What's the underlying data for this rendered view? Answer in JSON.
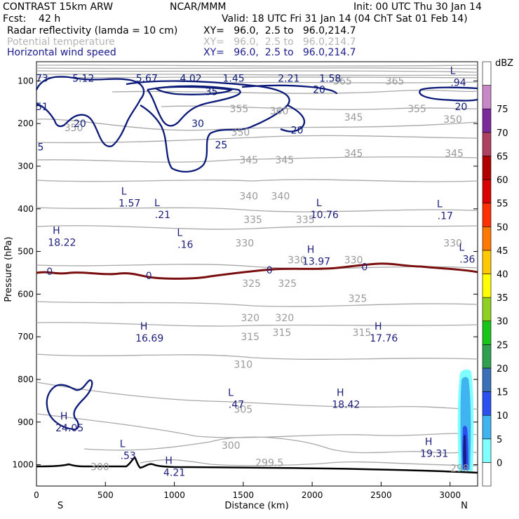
{
  "header": {
    "line1_left": "CONTRAST 15km ARW",
    "line1_mid": "NCAR/MMM",
    "line1_right": "Init: 00 UTC Thu 30 Jan 14",
    "line2_left": "Fcst:    42 h",
    "line2_right": "Valid: 18 UTC Fri 31 Jan 14 (04 ChT Sat 01 Feb 14)",
    "fields": [
      {
        "name": "Radar reflectivity (lamda = 10 cm)",
        "xy": "XY=   96.0,  2.5 to   96.0,214.7",
        "color": "#000000"
      },
      {
        "name": "Potential temperature",
        "xy": "XY=   96.0,  2.5 to   96.0,214.7",
        "color": "#b4b4b4"
      },
      {
        "name": "Horizontal wind speed",
        "xy": "XY=   96.0,  2.5 to   96.0,214.7",
        "color": "#1a1a8c"
      }
    ]
  },
  "chart_data": {
    "type": "cross-section contour",
    "xlabel": "Distance (km)",
    "ylabel": "Pressure (hPa)",
    "xlim": [
      0,
      3200
    ],
    "ylim": [
      1050,
      55
    ],
    "x_ticks": [
      "0",
      "500",
      "1000",
      "1500",
      "2000",
      "2500",
      "3000"
    ],
    "y_ticks": [
      "100",
      "200",
      "300",
      "400",
      "500",
      "600",
      "700",
      "800",
      "900",
      "1000"
    ],
    "endpoint_labels": {
      "left": "S",
      "right": "N"
    },
    "potential_temperature_labels": [
      {
        "text": "365",
        "x": 2220,
        "p": 100
      },
      {
        "text": "365",
        "x": 2600,
        "p": 100
      },
      {
        "text": "355",
        "x": 1470,
        "p": 165
      },
      {
        "text": "355",
        "x": 2760,
        "p": 165
      },
      {
        "text": "360",
        "x": 1760,
        "p": 170
      },
      {
        "text": "350",
        "x": 1480,
        "p": 220
      },
      {
        "text": "345",
        "x": 2300,
        "p": 185
      },
      {
        "text": "350",
        "x": 3020,
        "p": 190
      },
      {
        "text": "350",
        "x": 270,
        "p": 210
      },
      {
        "text": "345",
        "x": 1540,
        "p": 285
      },
      {
        "text": "345",
        "x": 1800,
        "p": 285
      },
      {
        "text": "345",
        "x": 2300,
        "p": 270
      },
      {
        "text": "345",
        "x": 3030,
        "p": 270
      },
      {
        "text": "340",
        "x": 1540,
        "p": 370
      },
      {
        "text": "340",
        "x": 1770,
        "p": 370
      },
      {
        "text": "335",
        "x": 1570,
        "p": 425
      },
      {
        "text": "335",
        "x": 1950,
        "p": 425
      },
      {
        "text": "330",
        "x": 1510,
        "p": 480
      },
      {
        "text": "330",
        "x": 1890,
        "p": 520
      },
      {
        "text": "330",
        "x": 2300,
        "p": 520
      },
      {
        "text": "330",
        "x": 3020,
        "p": 480
      },
      {
        "text": "325",
        "x": 1560,
        "p": 575
      },
      {
        "text": "325",
        "x": 1820,
        "p": 575
      },
      {
        "text": "325",
        "x": 2330,
        "p": 610
      },
      {
        "text": "320",
        "x": 1550,
        "p": 655
      },
      {
        "text": "320",
        "x": 1800,
        "p": 655
      },
      {
        "text": "315",
        "x": 1550,
        "p": 700
      },
      {
        "text": "315",
        "x": 1780,
        "p": 690
      },
      {
        "text": "315",
        "x": 2360,
        "p": 690
      },
      {
        "text": "310",
        "x": 1500,
        "p": 765
      },
      {
        "text": "305",
        "x": 1500,
        "p": 870
      },
      {
        "text": "300",
        "x": 1410,
        "p": 955
      },
      {
        "text": "300",
        "x": 460,
        "p": 1005
      },
      {
        "text": "299.5",
        "x": 1690,
        "p": 995
      },
      {
        "text": "298",
        "x": 3070,
        "p": 1008
      }
    ],
    "extrema": [
      {
        "kind": "L",
        "value": "1.57",
        "x": 675,
        "p": 373
      },
      {
        "kind": "L",
        "value": ".21",
        "x": 915,
        "p": 400
      },
      {
        "kind": "L",
        "value": "10.76",
        "x": 2090,
        "p": 400
      },
      {
        "kind": "L",
        "value": ".17",
        "x": 2965,
        "p": 403
      },
      {
        "kind": "H",
        "value": "18.22",
        "x": 185,
        "p": 465
      },
      {
        "kind": "L",
        "value": ".16",
        "x": 1080,
        "p": 470
      },
      {
        "kind": "H",
        "value": "13.97",
        "x": 2030,
        "p": 510
      },
      {
        "kind": "L",
        "value": ".36",
        "x": 3125,
        "p": 505
      },
      {
        "kind": "H",
        "value": "16.69",
        "x": 820,
        "p": 690
      },
      {
        "kind": "H",
        "value": "17.76",
        "x": 2520,
        "p": 690
      },
      {
        "kind": "L",
        "value": ".47",
        "x": 1450,
        "p": 845
      },
      {
        "kind": "H",
        "value": "18.42",
        "x": 2245,
        "p": 845
      },
      {
        "kind": "H",
        "value": "24.05",
        "x": 240,
        "p": 900
      },
      {
        "kind": "L",
        "value": ".53",
        "x": 665,
        "p": 965
      },
      {
        "kind": "H",
        "value": "19.31",
        "x": 2885,
        "p": 960
      },
      {
        "kind": "H",
        "value": "4.21",
        "x": 1000,
        "p": 1005
      },
      {
        "kind": "L",
        "value": ".94",
        "x": 3060,
        "p": 90
      }
    ],
    "wind_top_values": [
      "73",
      "5.12",
      "5.67",
      "4.02",
      "1.45",
      "2.21",
      "1.58"
    ],
    "wind_contour_labels": [
      {
        "text": "20",
        "x": 2050,
        "p": 120
      },
      {
        "text": "20",
        "x": 3080,
        "p": 160
      },
      {
        "text": "35",
        "x": 1270,
        "p": 125
      },
      {
        "text": "20",
        "x": 315,
        "p": 200
      },
      {
        "text": "30",
        "x": 1170,
        "p": 200
      },
      {
        "text": "20",
        "x": 1890,
        "p": 215
      },
      {
        "text": "25",
        "x": 1340,
        "p": 250
      },
      {
        "text": "51",
        "x": 40,
        "p": 160
      },
      {
        "text": "5",
        "x": 30,
        "p": 255
      }
    ],
    "freezing_level": {
      "label": "0",
      "p": 550
    },
    "reflectivity_colorbar": {
      "unit": "dBZ",
      "levels": [
        "0",
        "5",
        "10",
        "15",
        "20",
        "25",
        "30",
        "35",
        "40",
        "45",
        "50",
        "55",
        "60",
        "65",
        "70",
        "75"
      ],
      "colors": [
        "#ffffff",
        "#80ffff",
        "#40b4f0",
        "#2c50f0",
        "#3a70b8",
        "#30a050",
        "#18c418",
        "#90d020",
        "#ffff00",
        "#ffc800",
        "#ff7800",
        "#ff3000",
        "#d80000",
        "#b00000",
        "#b04060",
        "#7a2a9a",
        "#c888c8",
        "#ffffff"
      ]
    }
  }
}
